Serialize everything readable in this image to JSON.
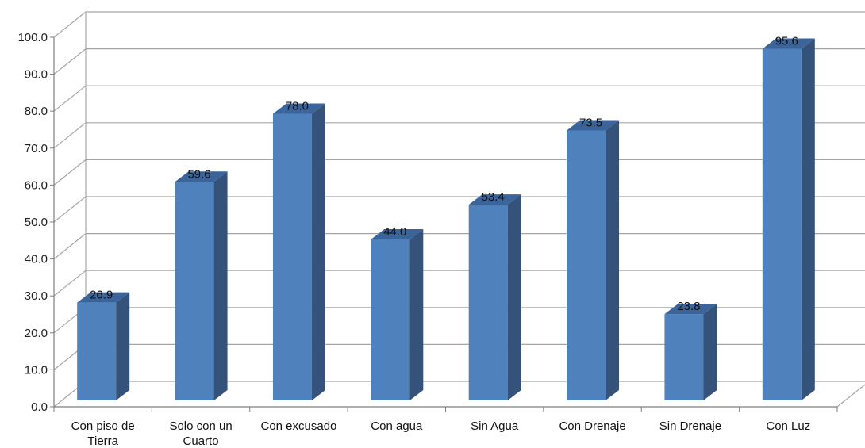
{
  "chart_data": {
    "type": "bar",
    "style": "3d-column",
    "categories": [
      [
        "Con piso de",
        "Tierra"
      ],
      [
        "Solo con un",
        "Cuarto"
      ],
      [
        "Con excusado"
      ],
      [
        "Con agua"
      ],
      [
        "Sin Agua"
      ],
      [
        "Con Drenaje"
      ],
      [
        "Sin Drenaje"
      ],
      [
        "Con Luz"
      ]
    ],
    "values": [
      26.9,
      59.6,
      78.0,
      44.0,
      53.4,
      73.5,
      23.8,
      95.6
    ],
    "value_labels": [
      "26.9",
      "59.6",
      "78.0",
      "44.0",
      "53.4",
      "73.5",
      "23.8",
      "95.6"
    ],
    "y_ticks": [
      "0.0",
      "10.0",
      "20.0",
      "30.0",
      "40.0",
      "50.0",
      "60.0",
      "70.0",
      "80.0",
      "90.0",
      "100.0"
    ],
    "ylim": [
      0,
      100
    ],
    "grid": true,
    "legend": "none",
    "colors": {
      "front": "#4F81BD",
      "side": "#34527A",
      "top": "#3B659A",
      "grid": "#A6A6A6"
    }
  }
}
